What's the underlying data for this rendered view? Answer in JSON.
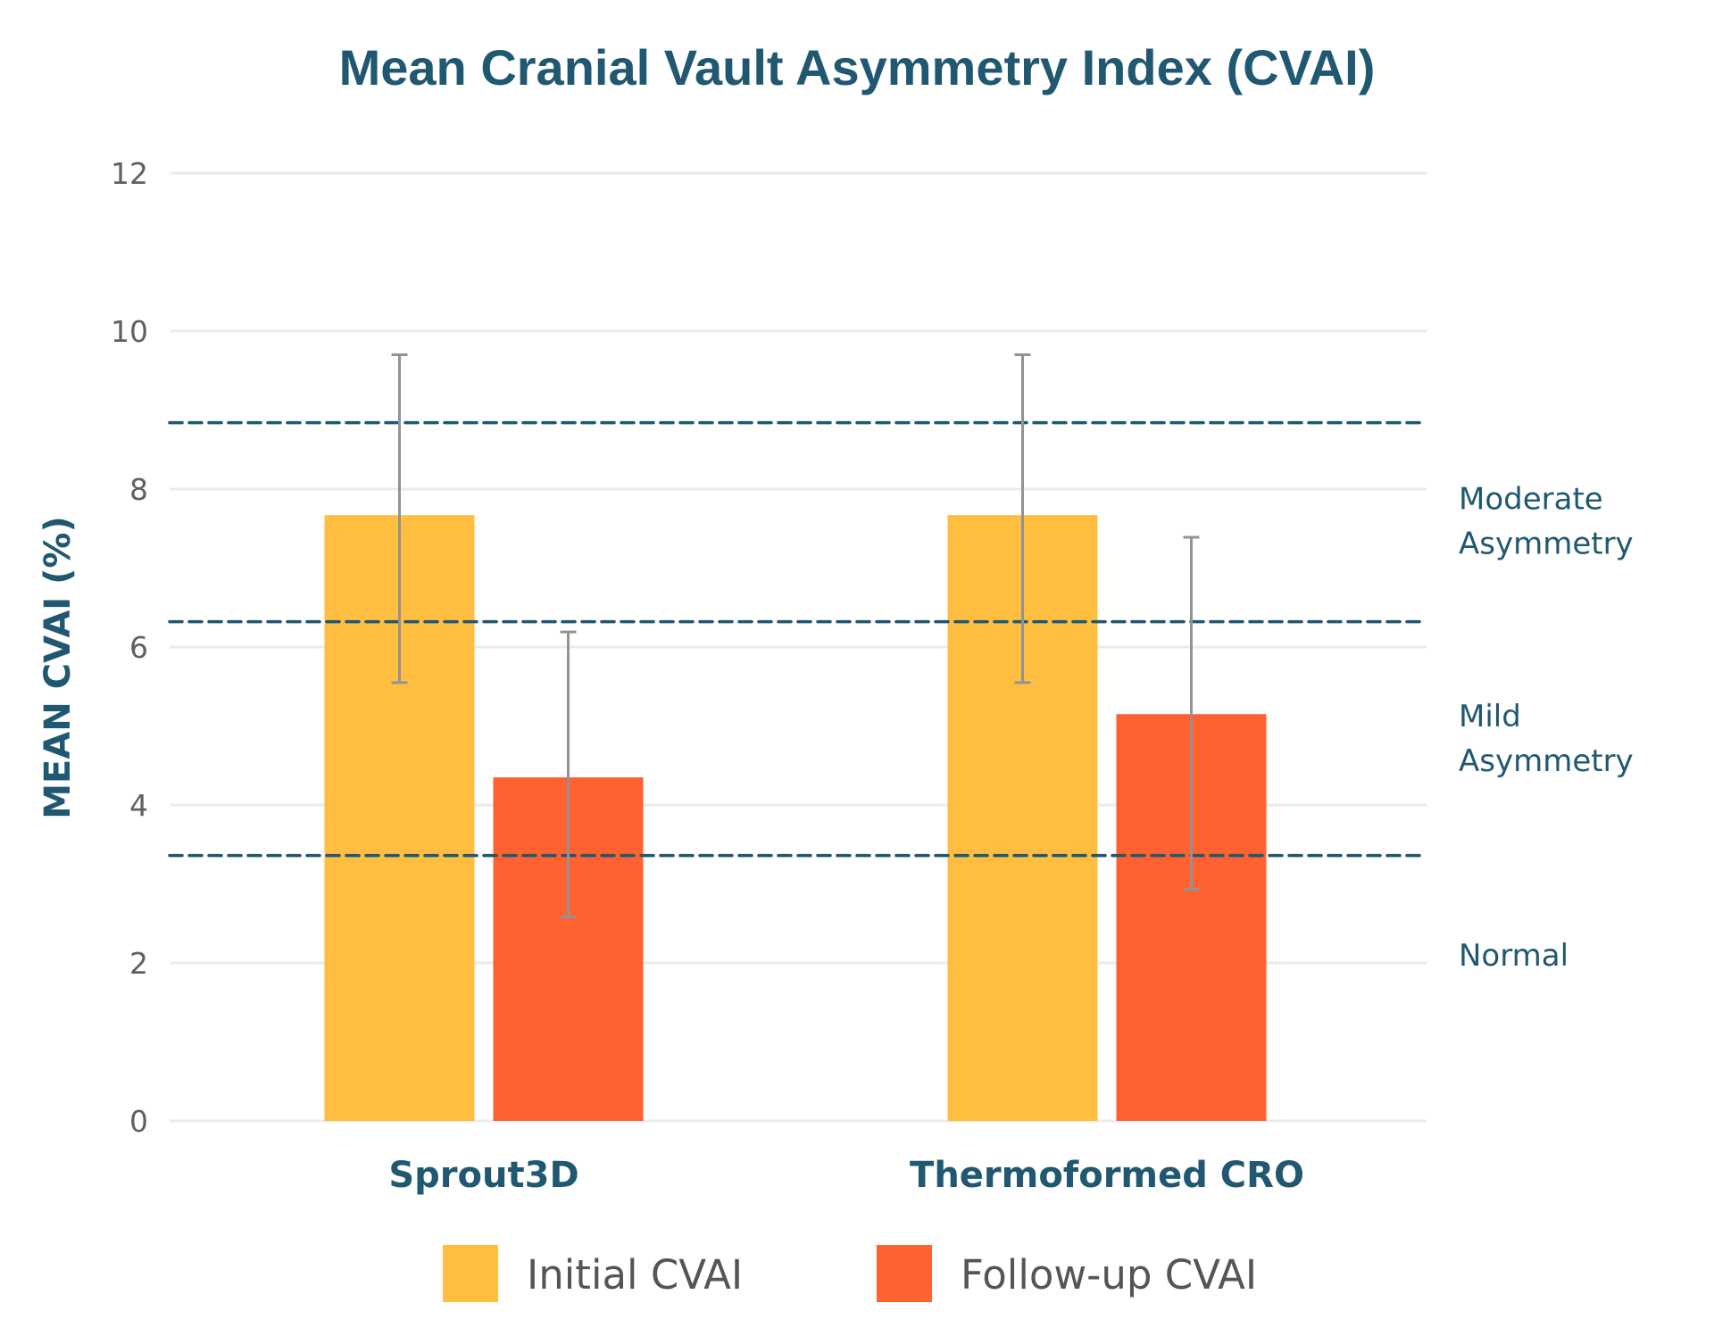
{
  "chart_data": {
    "type": "bar",
    "title": "Mean Cranial Vault Asymmetry Index (CVAI)",
    "xlabel": "",
    "ylabel": "MEAN CVAI (%)",
    "ylim": [
      0,
      12
    ],
    "yticks": [
      0,
      2,
      4,
      6,
      8,
      10,
      12
    ],
    "grid": true,
    "categories": [
      "Sprout3D",
      "Thermoformed CRO"
    ],
    "series": [
      {
        "name": "Initial CVAI",
        "color": "#ffbe40",
        "values": [
          7.67,
          7.67
        ],
        "error_low": [
          5.55,
          5.55
        ],
        "error_high": [
          9.7,
          9.7
        ]
      },
      {
        "name": "Follow-up CVAI",
        "color": "#ff6131",
        "values": [
          4.35,
          5.15
        ],
        "error_low": [
          2.58,
          2.93
        ],
        "error_high": [
          6.19,
          7.39
        ]
      }
    ],
    "threshold_lines": [
      3.36,
      6.32,
      8.84
    ],
    "threshold_color": "#1f5870",
    "zone_labels": [
      {
        "lines": [
          "Moderate",
          "Asymmetry"
        ],
        "y_center": 7.6
      },
      {
        "lines": [
          "Mild",
          "Asymmetry"
        ],
        "y_center": 4.85
      },
      {
        "lines": [
          "Normal"
        ],
        "y_center": 2.1
      }
    ],
    "legend": {
      "position": "bottom-center",
      "entries": [
        "Initial CVAI",
        "Follow-up CVAI"
      ]
    },
    "error_bar_color": "#939393",
    "gridline_color": "#ebebeb"
  }
}
